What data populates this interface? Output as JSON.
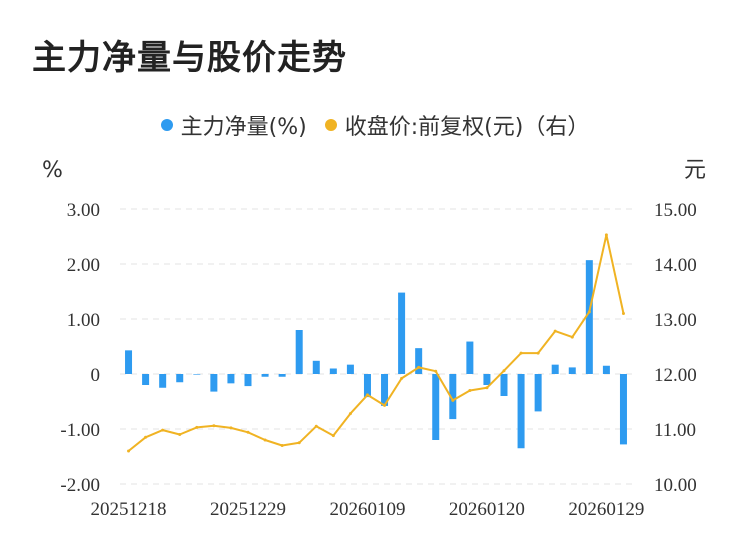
{
  "title": "主力净量与股价走势",
  "colors": {
    "bar": "#2e9bf0",
    "line": "#f0b323",
    "grid": "#e3e3e3"
  },
  "chart_data": {
    "type": "bar+line",
    "legend": [
      {
        "name": "主力净量(%)",
        "color": "#2e9bf0"
      },
      {
        "name": "收盘价:前复权(元)（右）",
        "color": "#f0b323"
      }
    ],
    "y_left_unit": "%",
    "y_right_unit": "元",
    "y_left_ticks": [
      "3.00",
      "2.00",
      "1.00",
      "0",
      "-1.00",
      "-2.00"
    ],
    "y_right_ticks": [
      "15.00",
      "14.00",
      "13.00",
      "12.00",
      "11.00",
      "10.00"
    ],
    "y_left_range": [
      -2,
      3
    ],
    "y_right_range": [
      10,
      15
    ],
    "x_tick_labels": [
      "20251218",
      "20251229",
      "20260109",
      "20260120",
      "20260129"
    ],
    "x_tick_label_indices": [
      0,
      7,
      14,
      21,
      28
    ],
    "series": [
      {
        "name": "主力净量(%)",
        "type": "bar",
        "values": [
          0.43,
          -0.2,
          -0.25,
          -0.15,
          0,
          -0.32,
          -0.17,
          -0.22,
          -0.05,
          -0.05,
          0.8,
          0.24,
          0.1,
          0.17,
          -0.42,
          -0.58,
          1.48,
          0.47,
          -1.2,
          -0.82,
          0.59,
          -0.2,
          -0.4,
          -1.35,
          -0.68,
          0.17,
          0.12,
          2.07,
          0.15,
          -1.28
        ]
      },
      {
        "name": "收盘价:前复权(元)（右）",
        "type": "line",
        "axis": "right",
        "values": [
          10.6,
          10.85,
          10.98,
          10.9,
          11.03,
          11.06,
          11.02,
          10.94,
          10.8,
          10.7,
          10.75,
          11.05,
          10.88,
          11.28,
          11.62,
          11.43,
          11.92,
          12.12,
          12.05,
          11.52,
          11.7,
          11.75,
          12.06,
          12.38,
          12.38,
          12.78,
          12.67,
          13.13,
          14.53,
          13.1
        ]
      }
    ]
  }
}
